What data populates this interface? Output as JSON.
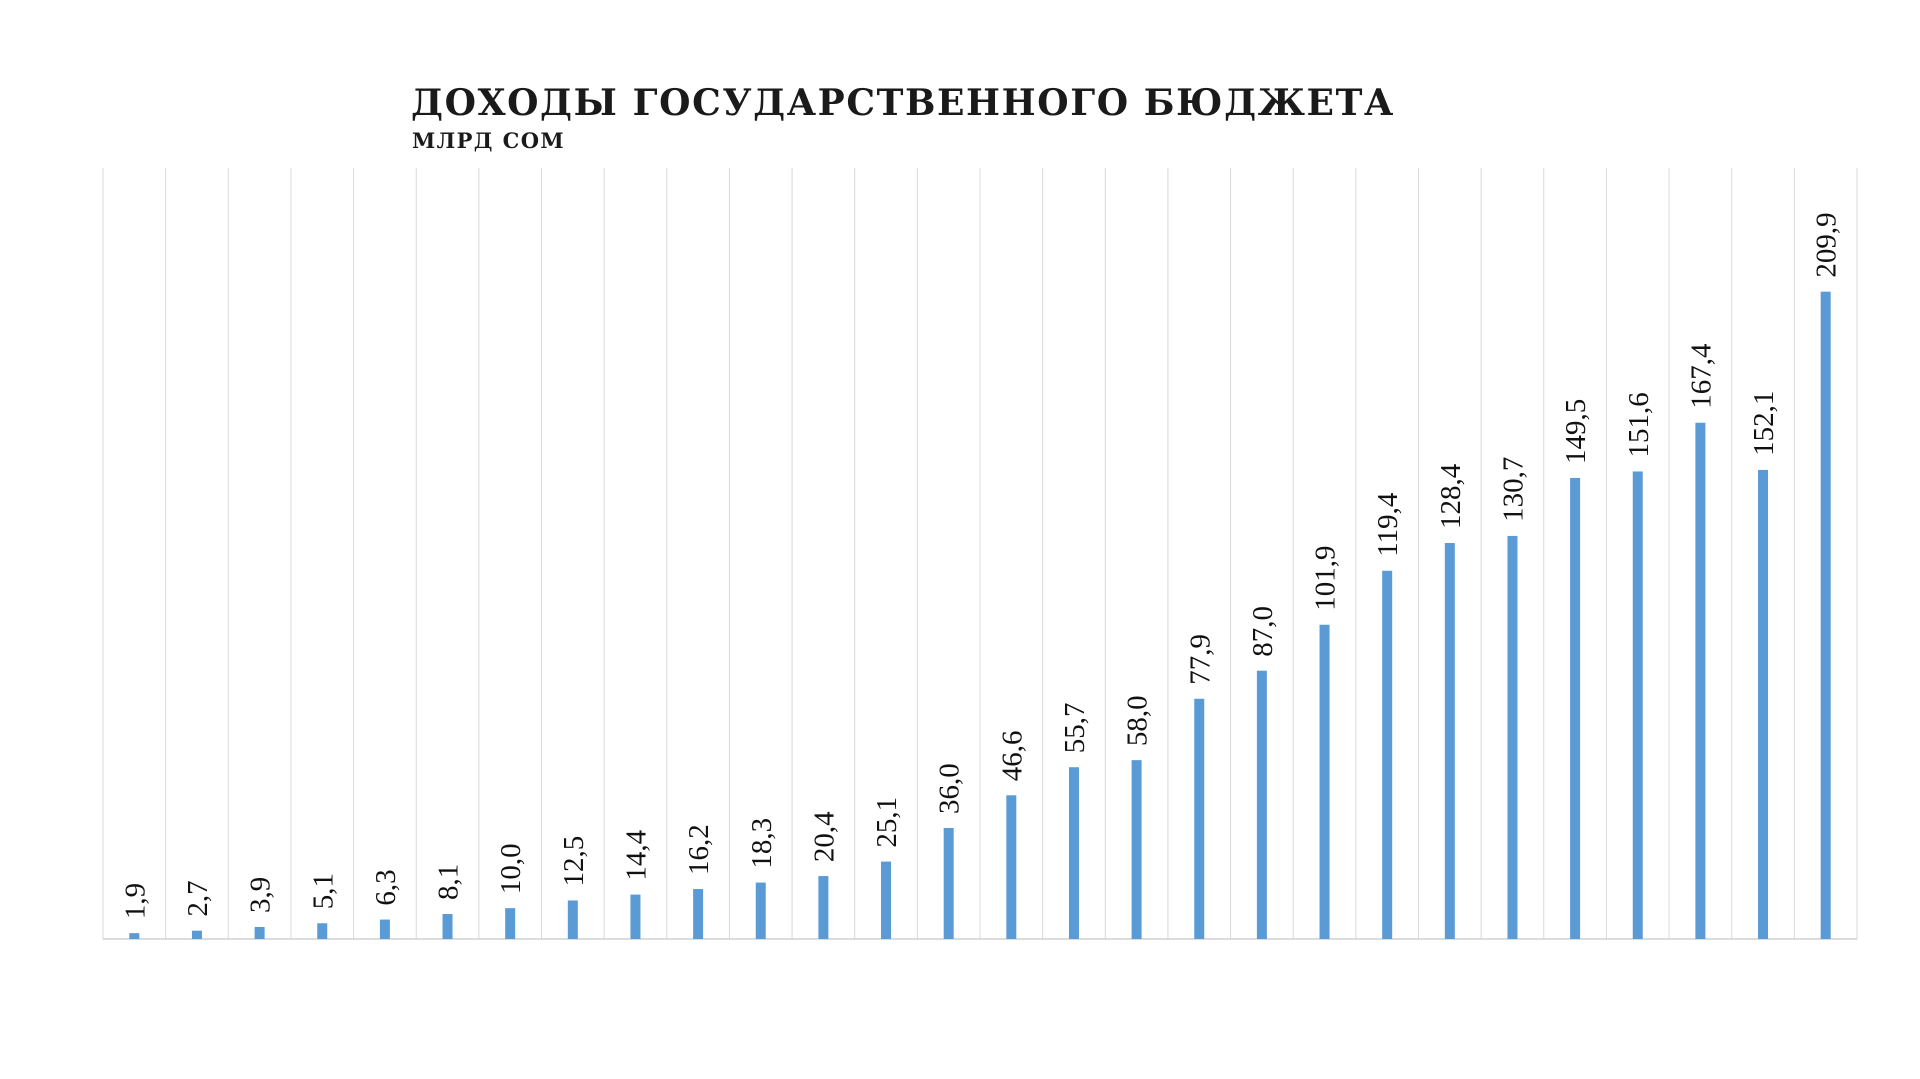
{
  "chart_data": {
    "type": "bar",
    "title": "ДОХОДЫ ГОСУДАРСТВЕННОГО БЮДЖЕТА",
    "subtitle": "МЛРД СОМ",
    "values": [
      1.9,
      2.7,
      3.9,
      5.1,
      6.3,
      8.1,
      10.0,
      12.5,
      14.4,
      16.2,
      18.3,
      20.4,
      25.1,
      36.0,
      46.6,
      55.7,
      58.0,
      77.9,
      87.0,
      101.9,
      119.4,
      128.4,
      130.7,
      149.5,
      151.6,
      167.4,
      152.1,
      209.9
    ],
    "data_labels": [
      "1,9",
      "2,7",
      "3,9",
      "5,1",
      "6,3",
      "8,1",
      "10,0",
      "12,5",
      "14,4",
      "16,2",
      "18,3",
      "20,4",
      "25,1",
      "36,0",
      "46,6",
      "55,7",
      "58,0",
      "77,9",
      "87,0",
      "101,9",
      "119,4",
      "128,4",
      "130,7",
      "149,5",
      "151,6",
      "167,4",
      "152,1",
      "209,9"
    ],
    "ylim": [
      0,
      250
    ],
    "grid": "vertical",
    "legend": "none",
    "bar_color": "#5b9bd5",
    "grid_color": "#d9d9d9",
    "axis_color": "#d0d0d0"
  }
}
